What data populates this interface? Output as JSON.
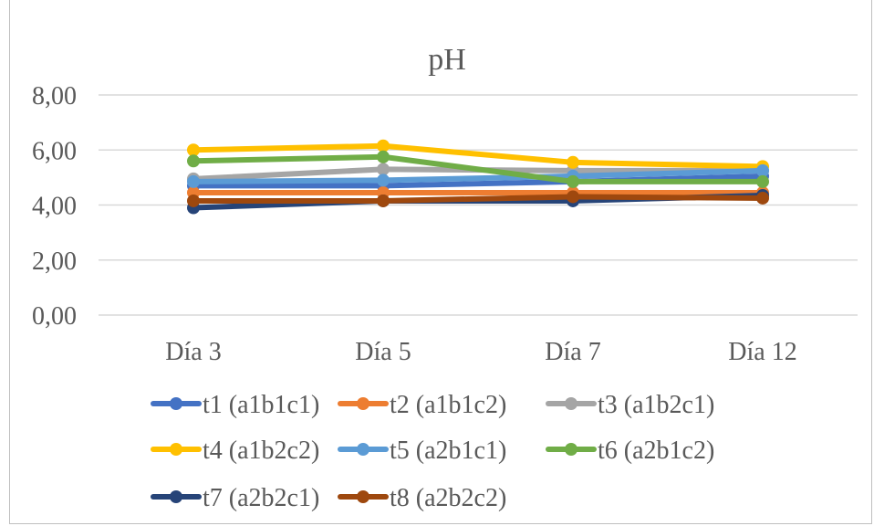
{
  "chart_data": {
    "type": "line",
    "title": "pH",
    "xlabel": "",
    "ylabel": "",
    "categories": [
      "Día 3",
      "Día 5",
      "Día 7",
      "Día 12"
    ],
    "ylim": [
      0,
      8
    ],
    "yticks": [
      "0,00",
      "2,00",
      "4,00",
      "6,00",
      "8,00"
    ],
    "ytick_values": [
      0,
      2,
      4,
      6,
      8
    ],
    "grid": true,
    "legend_position": "bottom",
    "series": [
      {
        "name": "t1  (a1b1c1)",
        "color": "#4472c4",
        "values": [
          4.7,
          4.7,
          4.85,
          5.05
        ]
      },
      {
        "name": "t2  (a1b1c2)",
        "color": "#ed7d31",
        "values": [
          4.45,
          4.45,
          4.45,
          4.45
        ]
      },
      {
        "name": "t3 (a1b2c1)",
        "color": "#a5a5a5",
        "values": [
          4.95,
          5.3,
          5.25,
          5.25
        ]
      },
      {
        "name": "t4 (a1b2c2)",
        "color": "#ffc000",
        "values": [
          6.0,
          6.15,
          5.55,
          5.4
        ]
      },
      {
        "name": "t5 (a2b1c1)",
        "color": "#5b9bd5",
        "values": [
          4.85,
          4.9,
          5.05,
          5.25
        ]
      },
      {
        "name": "t6 (a2b1c2)",
        "color": "#70ad47",
        "values": [
          5.6,
          5.75,
          4.85,
          4.85
        ]
      },
      {
        "name": "t7 (a2b2c1)",
        "color": "#264478",
        "values": [
          3.9,
          4.15,
          4.15,
          4.35
        ]
      },
      {
        "name": "t8 (a2b2c2)",
        "color": "#9e480e",
        "values": [
          4.15,
          4.15,
          4.3,
          4.25
        ]
      }
    ]
  }
}
